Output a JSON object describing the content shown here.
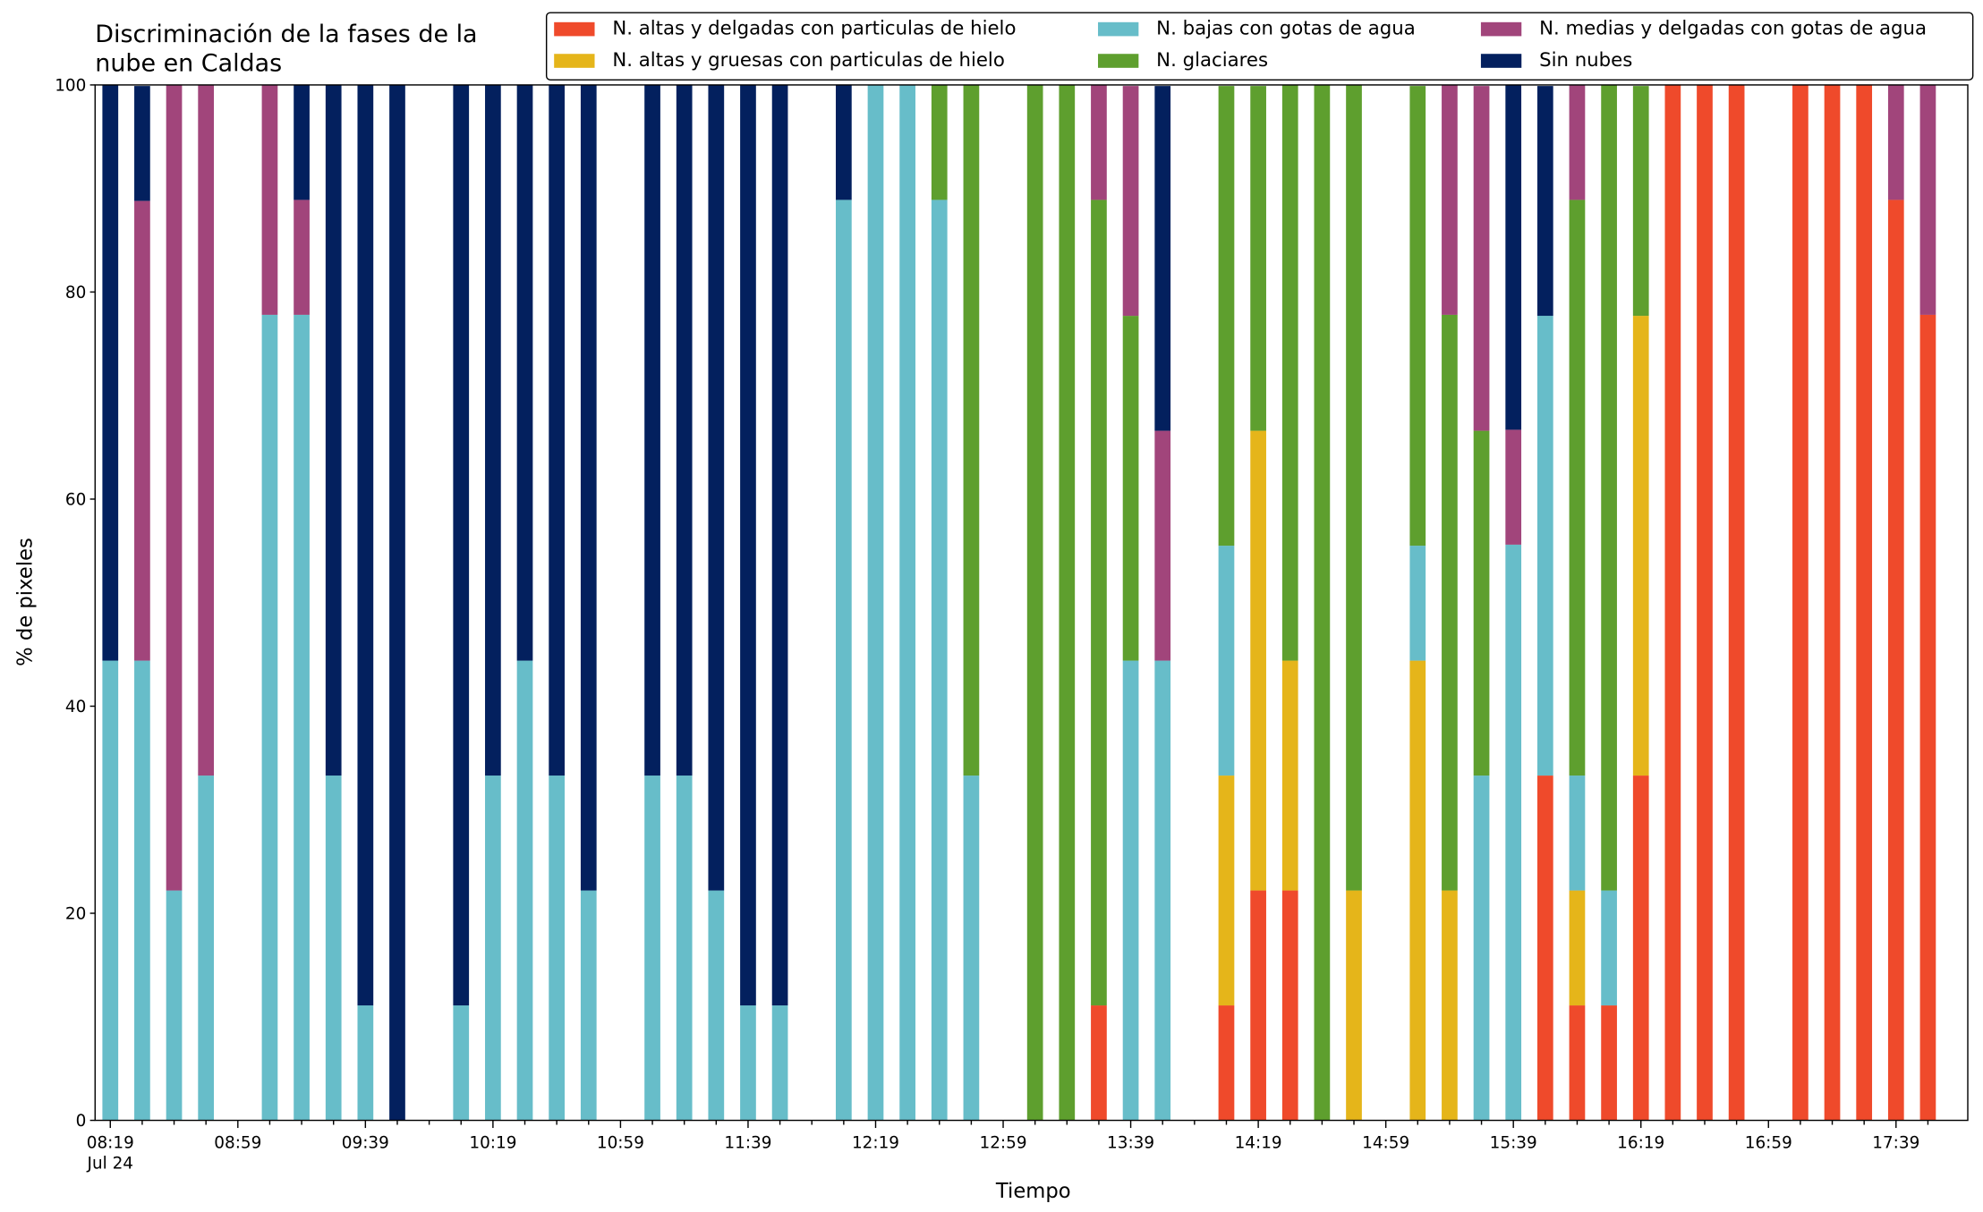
{
  "chart_data": {
    "type": "stacked_bar",
    "title": "Discriminación de la fases de la nube en Caldas",
    "x_label": "Tiempo",
    "y_label": "% de pixeles",
    "x_date": "Jul 24",
    "categories": [
      "08:19",
      null,
      null,
      null,
      "08:59",
      null,
      null,
      null,
      "09:39",
      null,
      null,
      null,
      "10:19",
      null,
      null,
      null,
      "10:59",
      null,
      null,
      null,
      "11:39",
      null,
      null,
      null,
      "12:19",
      null,
      null,
      null,
      "12:59",
      null,
      null,
      null,
      "13:39",
      null,
      null,
      null,
      "14:19",
      null,
      null,
      null,
      "14:59",
      null,
      null,
      null,
      "15:39",
      null,
      null,
      null,
      "16:19",
      null,
      null,
      null,
      "16:59",
      null,
      null,
      null,
      "17:39",
      null
    ],
    "ylim": [
      0,
      100
    ],
    "yticks": [
      0,
      20,
      40,
      60,
      80,
      100
    ],
    "grid": false,
    "legend": "top",
    "series": [
      {
        "name": "N. altas y delgadas con particulas de hielo",
        "color": "#ef4a2b",
        "values": [
          0,
          0,
          0,
          0,
          0,
          0,
          0,
          0,
          0,
          0,
          0,
          0,
          0,
          0,
          0,
          0,
          0,
          0,
          0,
          0,
          0,
          0,
          0,
          0,
          0,
          0,
          0,
          0,
          0,
          0,
          0,
          11.1,
          0,
          0,
          0,
          11.1,
          22.2,
          22.2,
          0,
          0,
          0,
          0,
          0,
          0,
          0,
          33.3,
          11.1,
          11.1,
          33.3,
          100,
          100,
          100,
          0,
          100,
          100,
          100,
          88.9,
          77.8
        ]
      },
      {
        "name": "N. altas y gruesas con particulas de hielo",
        "color": "#e5b51a",
        "values": [
          0,
          0,
          0,
          0,
          0,
          0,
          0,
          0,
          0,
          0,
          0,
          0,
          0,
          0,
          0,
          0,
          0,
          0,
          0,
          0,
          0,
          0,
          0,
          0,
          0,
          0,
          0,
          0,
          0,
          0,
          0,
          0,
          0,
          0,
          0,
          22.2,
          44.4,
          22.2,
          0,
          22.2,
          0,
          44.4,
          22.2,
          0,
          0,
          0,
          11.1,
          0,
          44.4,
          0,
          0,
          0,
          0,
          0,
          0,
          0,
          0,
          0
        ]
      },
      {
        "name": "N. bajas con gotas de agua",
        "color": "#67bdc9",
        "values": [
          44.4,
          44.4,
          22.2,
          33.3,
          0,
          77.8,
          77.8,
          33.3,
          11.1,
          0,
          0,
          11.1,
          33.3,
          44.4,
          33.3,
          22.2,
          0,
          33.3,
          33.3,
          22.2,
          11.1,
          11.1,
          0,
          88.9,
          100,
          100,
          88.9,
          33.3,
          0,
          0,
          0,
          0,
          44.4,
          44.4,
          0,
          22.2,
          0,
          0,
          0,
          0,
          0,
          11.1,
          0,
          33.3,
          55.6,
          44.4,
          11.1,
          11.1,
          0,
          0,
          0,
          0,
          0,
          0,
          0,
          0,
          0,
          0
        ]
      },
      {
        "name": "N. glaciares",
        "color": "#5e9f2e",
        "values": [
          0,
          0,
          0,
          0,
          0,
          0,
          0,
          0,
          0,
          0,
          0,
          0,
          0,
          0,
          0,
          0,
          0,
          0,
          0,
          0,
          0,
          0,
          0,
          0,
          0,
          0,
          11.1,
          66.7,
          0,
          100,
          100,
          77.8,
          33.3,
          0,
          0,
          44.4,
          33.3,
          55.6,
          100,
          77.8,
          0,
          44.4,
          55.6,
          33.3,
          0,
          0,
          55.6,
          77.8,
          22.2,
          0,
          0,
          0,
          0,
          0,
          0,
          0,
          0,
          0
        ]
      },
      {
        "name": "N. medias y delgadas con gotas de agua",
        "color": "#a1457b",
        "values": [
          0,
          44.4,
          77.8,
          66.7,
          0,
          22.2,
          11.1,
          0,
          0,
          0,
          0,
          0,
          0,
          0,
          0,
          0,
          0,
          0,
          0,
          0,
          0,
          0,
          0,
          0,
          0,
          0,
          0,
          0,
          0,
          0,
          0,
          11.1,
          22.2,
          22.2,
          0,
          0,
          0,
          0,
          0,
          0,
          0,
          0,
          22.2,
          33.3,
          11.1,
          0,
          11.1,
          0,
          0,
          0,
          0,
          0,
          0,
          0,
          0,
          0,
          11.1,
          22.2
        ]
      },
      {
        "name": "Sin nubes",
        "color": "#03205e",
        "values": [
          55.6,
          11.1,
          0,
          0,
          0,
          0,
          11.1,
          66.7,
          88.9,
          100,
          0,
          88.9,
          66.7,
          55.6,
          66.7,
          77.8,
          0,
          66.7,
          66.7,
          77.8,
          88.9,
          88.9,
          0,
          11.1,
          0,
          0,
          0,
          0,
          0,
          0,
          0,
          0,
          0,
          33.3,
          0,
          0,
          0,
          0,
          0,
          0,
          0,
          0,
          0,
          0,
          33.3,
          22.2,
          0,
          0,
          0,
          0,
          0,
          0,
          0,
          0,
          0,
          0,
          0,
          0
        ]
      }
    ]
  }
}
